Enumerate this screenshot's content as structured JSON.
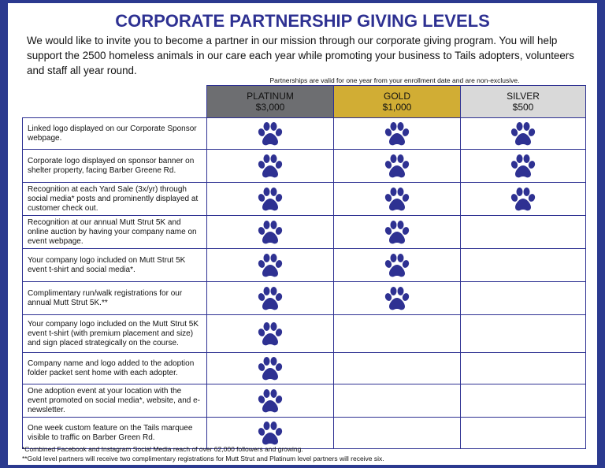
{
  "header": {
    "title": "CORPORATE PARTNERSHIP GIVING LEVELS",
    "intro": "We would like to invite you to become a partner in our mission through our corporate giving program. You will help support the 2500 homeless animals in our care each year while promoting your business to Tails adopters, volunteers and staff all year round.",
    "note": "Partnerships are valid for one year from your enrollment date and are non-exclusive."
  },
  "table": {
    "tiers": [
      {
        "name": "PLATINUM",
        "price": "$3,000",
        "color": "#6d6e71"
      },
      {
        "name": "GOLD",
        "price": "$1,000",
        "color": "#d1ad34"
      },
      {
        "name": "SILVER",
        "price": "$500",
        "color": "#d9d9d9"
      }
    ],
    "rows": [
      {
        "benefit": "Linked logo displayed on our Corporate Sponsor webpage.",
        "included": [
          true,
          true,
          true
        ]
      },
      {
        "benefit": "Corporate logo displayed on sponsor banner on shelter property, facing Barber Greene Rd.",
        "included": [
          true,
          true,
          true
        ]
      },
      {
        "benefit": "Recognition at each Yard Sale (3x/yr) through social media* posts and prominently displayed at customer check out.",
        "included": [
          true,
          true,
          true
        ]
      },
      {
        "benefit": "Recognition at our annual Mutt Strut 5K and online auction by having your company name on event webpage.",
        "included": [
          true,
          true,
          false
        ]
      },
      {
        "benefit": "Your company logo included on Mutt Strut 5K event t-shirt and social media*.",
        "included": [
          true,
          true,
          false
        ]
      },
      {
        "benefit": "Complimentary run/walk registrations for our annual Mutt Strut 5K.**",
        "included": [
          true,
          true,
          false
        ]
      },
      {
        "benefit": "Your company logo included on the Mutt Strut 5K event t-shirt (with premium placement and size) and sign placed strategically on the course.",
        "included": [
          true,
          false,
          false
        ]
      },
      {
        "benefit": "Company name and logo added to the adoption folder packet sent home with each adopter.",
        "included": [
          true,
          false,
          false
        ]
      },
      {
        "benefit": "One adoption event at your location with the event promoted on social media*, website, and e-newsletter.",
        "included": [
          true,
          false,
          false
        ]
      },
      {
        "benefit": "One week custom feature on the Tails marquee visible to traffic on Barber Green Rd.",
        "included": [
          true,
          false,
          false
        ]
      }
    ]
  },
  "footnotes": [
    "*Combined Facebook and Instagram Social Media reach of over 62,000 followers and growing.",
    "**Gold level partners will receive two complimentary registrations for Mutt Strut and Platinum level partners will receive six."
  ]
}
